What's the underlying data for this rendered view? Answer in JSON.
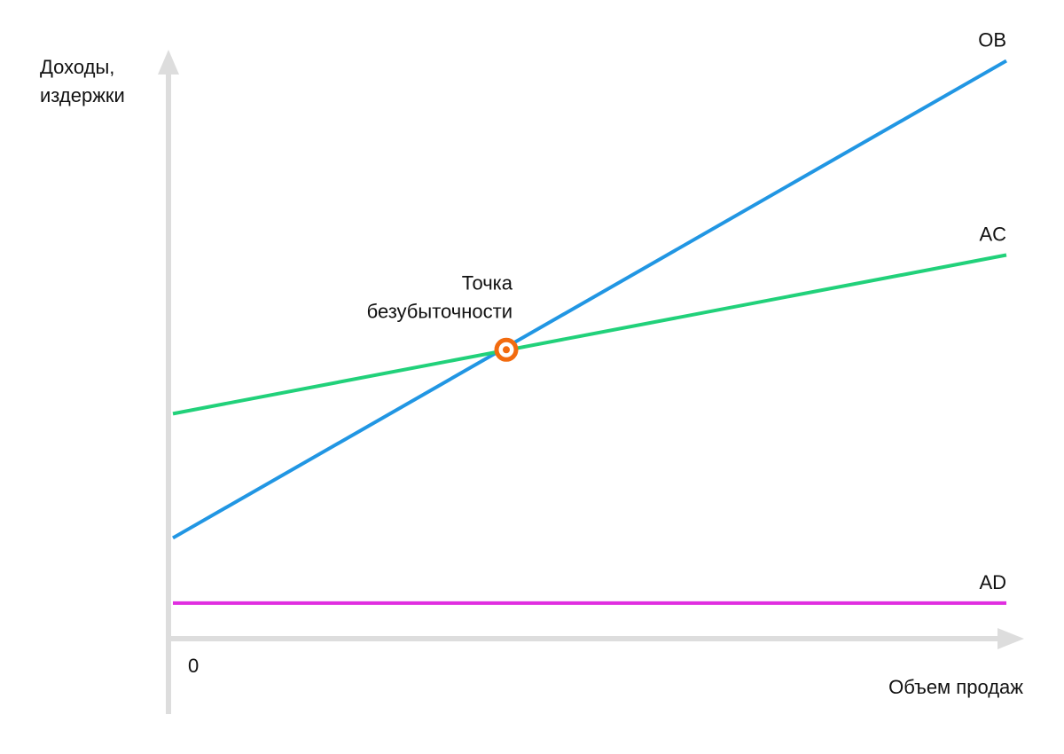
{
  "chart_data": {
    "type": "line",
    "ylabel_lines": [
      "Доходы,",
      "издержки"
    ],
    "xlabel": "Объем продаж",
    "origin_label": "0",
    "xlim": [
      0,
      100
    ],
    "ylim": [
      0,
      100
    ],
    "grid": false,
    "legend": "none",
    "series": [
      {
        "name": "OB",
        "color": "#2196e3",
        "x": [
          0,
          100
        ],
        "y": [
          16.7,
          95.8
        ]
      },
      {
        "name": "AC",
        "color": "#21d17a",
        "x": [
          0,
          100
        ],
        "y": [
          37.3,
          63.6
        ]
      },
      {
        "name": "AD",
        "color": "#e02ee0",
        "x": [
          0,
          100
        ],
        "y": [
          5.9,
          5.9
        ]
      }
    ],
    "annotations": [
      {
        "text_lines": [
          "Точка",
          "безубыточности"
        ],
        "x": 40.0,
        "y": 47.9,
        "marker_color": "#f26b0f"
      }
    ]
  }
}
